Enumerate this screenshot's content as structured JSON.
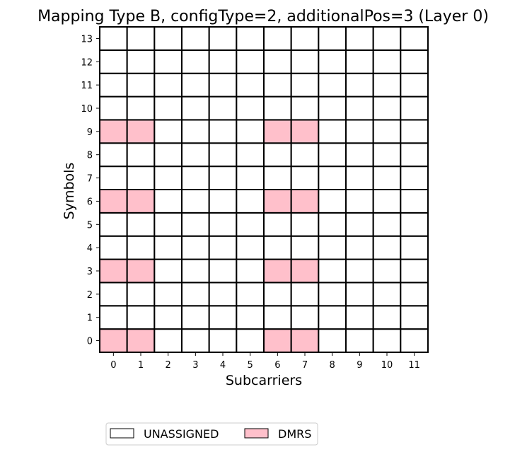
{
  "chart_data": {
    "type": "heatmap",
    "title": "Mapping Type B, configType=2, additionalPos=3 (Layer 0)",
    "xlabel": "Subcarriers",
    "ylabel": "Symbols",
    "x_ticks": [
      "0",
      "1",
      "2",
      "3",
      "4",
      "5",
      "6",
      "7",
      "8",
      "9",
      "10",
      "11"
    ],
    "y_ticks": [
      "0",
      "1",
      "2",
      "3",
      "4",
      "5",
      "6",
      "7",
      "8",
      "9",
      "10",
      "11",
      "12",
      "13"
    ],
    "categories": [
      {
        "name": "UNASSIGNED",
        "color": "#ffffff"
      },
      {
        "name": "DMRS",
        "color": "#ffc0cb"
      }
    ],
    "cells": [
      {
        "symbol": 0,
        "subcarrier": 0,
        "type": "DMRS"
      },
      {
        "symbol": 0,
        "subcarrier": 1,
        "type": "DMRS"
      },
      {
        "symbol": 0,
        "subcarrier": 6,
        "type": "DMRS"
      },
      {
        "symbol": 0,
        "subcarrier": 7,
        "type": "DMRS"
      },
      {
        "symbol": 3,
        "subcarrier": 0,
        "type": "DMRS"
      },
      {
        "symbol": 3,
        "subcarrier": 1,
        "type": "DMRS"
      },
      {
        "symbol": 3,
        "subcarrier": 6,
        "type": "DMRS"
      },
      {
        "symbol": 3,
        "subcarrier": 7,
        "type": "DMRS"
      },
      {
        "symbol": 6,
        "subcarrier": 0,
        "type": "DMRS"
      },
      {
        "symbol": 6,
        "subcarrier": 1,
        "type": "DMRS"
      },
      {
        "symbol": 6,
        "subcarrier": 6,
        "type": "DMRS"
      },
      {
        "symbol": 6,
        "subcarrier": 7,
        "type": "DMRS"
      },
      {
        "symbol": 9,
        "subcarrier": 0,
        "type": "DMRS"
      },
      {
        "symbol": 9,
        "subcarrier": 1,
        "type": "DMRS"
      },
      {
        "symbol": 9,
        "subcarrier": 6,
        "type": "DMRS"
      },
      {
        "symbol": 9,
        "subcarrier": 7,
        "type": "DMRS"
      }
    ],
    "default_type": "UNASSIGNED",
    "legend_position": "bottom-center",
    "grid": true
  }
}
